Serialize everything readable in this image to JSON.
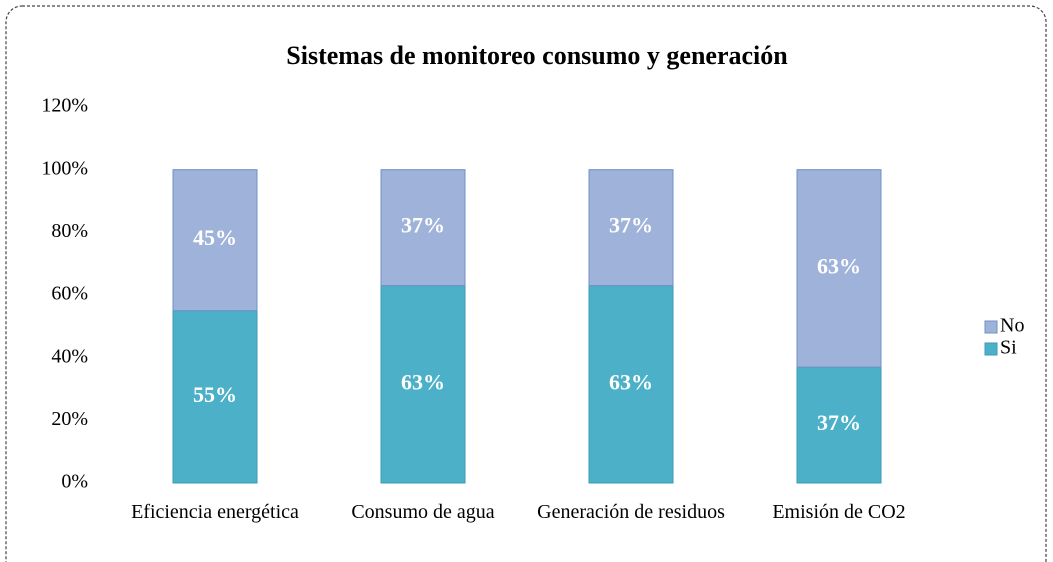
{
  "chart_data": {
    "type": "stacked_bar",
    "title": "Sistemas de monitoreo consumo y generación",
    "categories": [
      "Eficiencia energética",
      "Consumo de agua",
      "Generación de residuos",
      "Emisión de CO2"
    ],
    "series": [
      {
        "name": "Si",
        "color": "#4bb0c8",
        "values": [
          55,
          63,
          63,
          37
        ],
        "value_labels": [
          "55%",
          "63%",
          "63%",
          "37%"
        ]
      },
      {
        "name": "No",
        "color": "#9fb3da",
        "values": [
          45,
          37,
          37,
          63
        ],
        "value_labels": [
          "45%",
          "37%",
          "37%",
          "63%"
        ]
      }
    ],
    "ylim": [
      0,
      120
    ],
    "yticks": [
      {
        "value": 0,
        "label": "0%"
      },
      {
        "value": 20,
        "label": "20%"
      },
      {
        "value": 40,
        "label": "40%"
      },
      {
        "value": 60,
        "label": "60%"
      },
      {
        "value": 80,
        "label": "80%"
      },
      {
        "value": 100,
        "label": "100%"
      },
      {
        "value": 120,
        "label": "120%"
      }
    ],
    "legend": "right"
  }
}
